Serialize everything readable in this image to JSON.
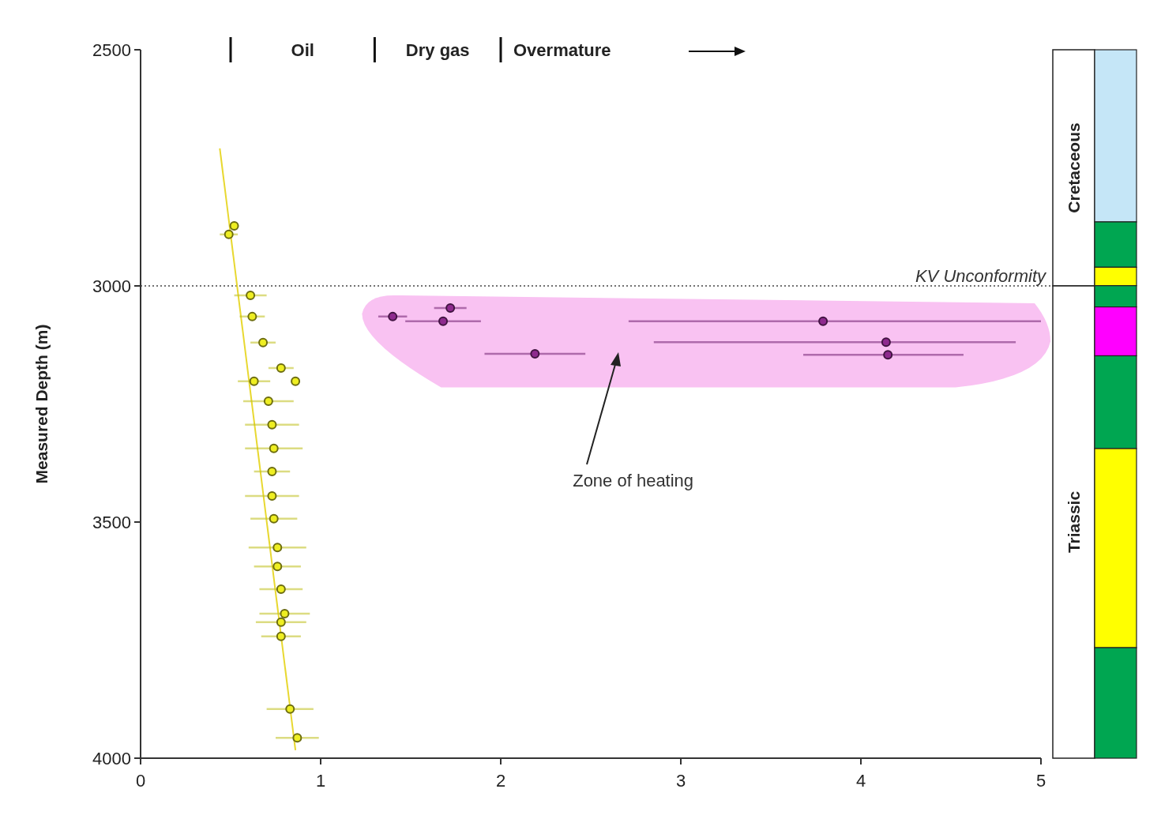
{
  "chart_data": [
    {
      "type": "scatter",
      "ylabel": "Measured Depth (m)",
      "xlim": [
        0,
        5
      ],
      "xticks": [
        0,
        1,
        2,
        3,
        4,
        5
      ],
      "ylim": [
        4000,
        2500
      ],
      "yticks": [
        2500,
        3000,
        3500,
        4000
      ],
      "marker": "circle",
      "annotations": [
        "Oil",
        "Dry gas",
        "Overmature"
      ],
      "ref_lines": [
        {
          "axis": "y",
          "value": 3000,
          "label": "KV Unconformity",
          "line_style": "dotted",
          "color": "#444444"
        }
      ],
      "bands": [
        {
          "axis": "y",
          "from": 3020,
          "to": 3215,
          "label": "Zone of heating",
          "color": "#f9c2f2"
        }
      ],
      "series": [
        {
          "type": "line",
          "marker": "none",
          "color": "#e8d830",
          "x": [
            0.44,
            0.86
          ],
          "values": [
            2709,
            3983
          ]
        },
        {
          "color": "#eeee22",
          "x": [
            0.52,
            0.49,
            0.61,
            0.62,
            0.68,
            0.78,
            0.63,
            0.86,
            0.71,
            0.73,
            0.74,
            0.73,
            0.73,
            0.74,
            0.76,
            0.76,
            0.78,
            0.8,
            0.78,
            0.78,
            0.83,
            0.87
          ],
          "values": [
            2873,
            2891,
            3020,
            3065,
            3120,
            3174,
            3202,
            3202,
            3244,
            3294,
            3344,
            3393,
            3445,
            3493,
            3554,
            3594,
            3642,
            3694,
            3712,
            3742,
            3896,
            3957
          ],
          "xerrors": [
            null,
            0.05,
            0.09,
            0.07,
            0.07,
            0.07,
            0.09,
            null,
            0.14,
            0.15,
            0.16,
            0.1,
            0.15,
            0.13,
            0.16,
            0.13,
            0.12,
            0.14,
            0.14,
            0.11,
            0.13,
            0.12
          ]
        },
        {
          "color": "#8e2a8e",
          "x": [
            1.4,
            1.72,
            1.68,
            2.19,
            3.79,
            4.14,
            4.15
          ],
          "values": [
            3065,
            3047,
            3075,
            3144,
            3075,
            3119,
            3146
          ],
          "xerrors": [
            0.08,
            0.09,
            0.21,
            0.28,
            [
              2.71,
              5.0
            ],
            [
              2.85,
              4.86
            ],
            [
              3.68,
              4.57
            ]
          ]
        }
      ]
    },
    {
      "type": "other",
      "annotations": [
        "Cretaceous",
        "Triassic"
      ]
    }
  ]
}
